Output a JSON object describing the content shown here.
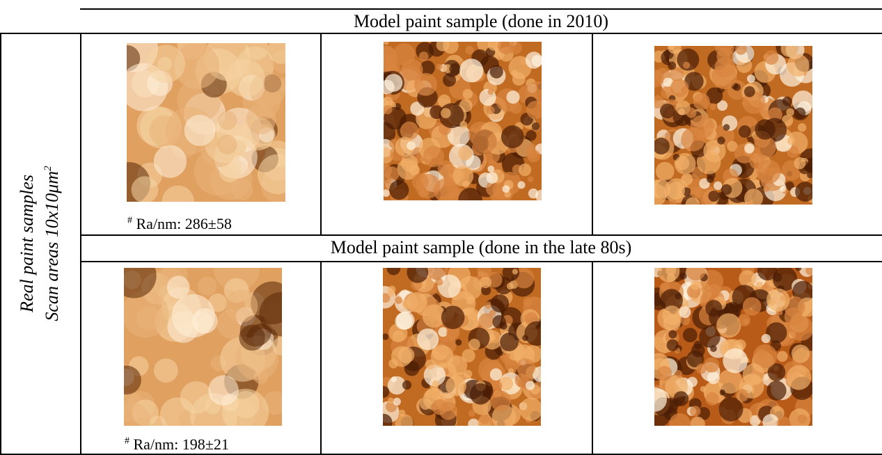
{
  "table": {
    "sections": [
      {
        "heading": "Model paint sample (done in 2010)",
        "caption": {
          "marker": "#",
          "text": "Ra/nm: 286±58"
        }
      },
      {
        "heading": "Model paint sample (done in the late 80s)",
        "caption": {
          "marker": "#",
          "text": "Ra/nm: 198±21"
        }
      }
    ],
    "row_label": {
      "line1": "Real paint samples",
      "line2": "Scan areas 10x10μm",
      "line2_sup": "2"
    }
  }
}
